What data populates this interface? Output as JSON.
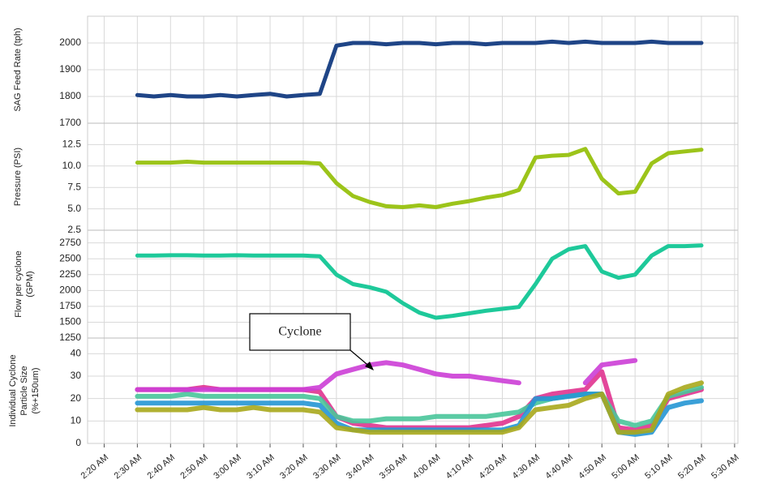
{
  "chart_data": [
    {
      "type": "line",
      "ylabel": [
        "SAG Feed Rate (tph)"
      ],
      "x": [
        "2:30 AM",
        "2:35 AM",
        "2:40 AM",
        "2:45 AM",
        "2:50 AM",
        "2:55 AM",
        "3:00 AM",
        "3:05 AM",
        "3:10 AM",
        "3:15 AM",
        "3:20 AM",
        "3:25 AM",
        "3:30 AM",
        "3:35 AM",
        "3:40 AM",
        "3:45 AM",
        "3:50 AM",
        "3:55 AM",
        "4:00 AM",
        "4:05 AM",
        "4:10 AM",
        "4:15 AM",
        "4:20 AM",
        "4:25 AM",
        "4:30 AM",
        "4:35 AM",
        "4:40 AM",
        "4:45 AM",
        "4:50 AM",
        "4:55 AM",
        "5:00 AM",
        "5:05 AM",
        "5:10 AM",
        "5:15 AM",
        "5:20 AM"
      ],
      "series": [
        {
          "color": "#1f4587",
          "values": [
            1805,
            1800,
            1805,
            1800,
            1800,
            1805,
            1800,
            1805,
            1810,
            1800,
            1805,
            1810,
            1990,
            2000,
            2000,
            1995,
            2000,
            2000,
            1995,
            2000,
            2000,
            1995,
            2000,
            2000,
            2000,
            2005,
            2000,
            2005,
            2000,
            2000,
            2000,
            2005,
            2000,
            2000,
            2000
          ]
        }
      ],
      "xlim": [
        "2:15 AM",
        "5:31 AM"
      ],
      "ylim": [
        1700,
        2100
      ],
      "yticks": [
        1700,
        1800,
        1900,
        2000
      ],
      "grid": true
    },
    {
      "type": "line",
      "ylabel": [
        "Pressure (PSI)"
      ],
      "x": [
        "2:30 AM",
        "2:35 AM",
        "2:40 AM",
        "2:45 AM",
        "2:50 AM",
        "2:55 AM",
        "3:00 AM",
        "3:05 AM",
        "3:10 AM",
        "3:15 AM",
        "3:20 AM",
        "3:25 AM",
        "3:30 AM",
        "3:35 AM",
        "3:40 AM",
        "3:45 AM",
        "3:50 AM",
        "3:55 AM",
        "4:00 AM",
        "4:05 AM",
        "4:10 AM",
        "4:15 AM",
        "4:20 AM",
        "4:25 AM",
        "4:30 AM",
        "4:35 AM",
        "4:40 AM",
        "4:45 AM",
        "4:50 AM",
        "4:55 AM",
        "5:00 AM",
        "5:05 AM",
        "5:10 AM",
        "5:15 AM",
        "5:20 AM"
      ],
      "series": [
        {
          "color": "#9cc41a",
          "values": [
            10.4,
            10.4,
            10.4,
            10.5,
            10.4,
            10.4,
            10.4,
            10.4,
            10.4,
            10.4,
            10.4,
            10.3,
            8.0,
            6.5,
            5.8,
            5.3,
            5.2,
            5.4,
            5.2,
            5.6,
            5.9,
            6.3,
            6.6,
            7.2,
            11.0,
            11.2,
            11.3,
            12.0,
            8.5,
            6.8,
            7.0,
            10.3,
            11.5,
            11.7,
            11.9
          ]
        }
      ],
      "xlim": [
        "2:15 AM",
        "5:31 AM"
      ],
      "ylim": [
        2.5,
        15
      ],
      "yticks": [
        2.5,
        {
          "value": 5,
          "label": "5.0"
        },
        7.5,
        {
          "value": 10,
          "label": "10.0"
        },
        12.5
      ],
      "grid": true
    },
    {
      "type": "line",
      "ylabel": [
        "Flow per cyclone",
        "(GPM)"
      ],
      "x": [
        "2:30 AM",
        "2:35 AM",
        "2:40 AM",
        "2:45 AM",
        "2:50 AM",
        "2:55 AM",
        "3:00 AM",
        "3:05 AM",
        "3:10 AM",
        "3:15 AM",
        "3:20 AM",
        "3:25 AM",
        "3:30 AM",
        "3:35 AM",
        "3:40 AM",
        "3:45 AM",
        "3:50 AM",
        "3:55 AM",
        "4:00 AM",
        "4:05 AM",
        "4:10 AM",
        "4:15 AM",
        "4:20 AM",
        "4:25 AM",
        "4:30 AM",
        "4:35 AM",
        "4:40 AM",
        "4:45 AM",
        "4:50 AM",
        "4:55 AM",
        "5:00 AM",
        "5:05 AM",
        "5:10 AM",
        "5:15 AM",
        "5:20 AM"
      ],
      "series": [
        {
          "color": "#1ec99a",
          "values": [
            2550,
            2550,
            2555,
            2555,
            2550,
            2550,
            2555,
            2550,
            2550,
            2550,
            2550,
            2540,
            2250,
            2100,
            2050,
            1980,
            1800,
            1650,
            1570,
            1600,
            1640,
            1680,
            1710,
            1740,
            2100,
            2500,
            2650,
            2700,
            2300,
            2200,
            2250,
            2550,
            2700,
            2700,
            2710
          ]
        }
      ],
      "xlim": [
        "2:15 AM",
        "5:31 AM"
      ],
      "ylim": [
        1250,
        2950
      ],
      "yticks": [
        1250,
        1500,
        1750,
        2000,
        2250,
        2500,
        2750
      ],
      "grid": true
    },
    {
      "type": "line",
      "ylabel": [
        "Individual Cyclone",
        "Particle Size",
        "(%+150um)"
      ],
      "annotation": "Cyclone",
      "x": [
        "2:30 AM",
        "2:35 AM",
        "2:40 AM",
        "2:45 AM",
        "2:50 AM",
        "2:55 AM",
        "3:00 AM",
        "3:05 AM",
        "3:10 AM",
        "3:15 AM",
        "3:20 AM",
        "3:25 AM",
        "3:30 AM",
        "3:35 AM",
        "3:40 AM",
        "3:45 AM",
        "3:50 AM",
        "3:55 AM",
        "4:00 AM",
        "4:05 AM",
        "4:10 AM",
        "4:15 AM",
        "4:20 AM",
        "4:25 AM",
        "4:30 AM",
        "4:35 AM",
        "4:40 AM",
        "4:45 AM",
        "4:50 AM",
        "4:55 AM",
        "5:00 AM",
        "5:05 AM",
        "5:10 AM",
        "5:15 AM",
        "5:20 AM"
      ],
      "series": [
        {
          "color": "#e0338f",
          "values": [
            24,
            24,
            24,
            24,
            25,
            24,
            24,
            24,
            24,
            24,
            24,
            23,
            12,
            9,
            8,
            7,
            7,
            7,
            7,
            7,
            7,
            8,
            9,
            12,
            20,
            22,
            23,
            24,
            32,
            7,
            6,
            8,
            20,
            22,
            24
          ]
        },
        {
          "color": "#49c59a",
          "values": [
            21,
            21,
            21,
            22,
            21,
            21,
            21,
            21,
            21,
            21,
            21,
            20,
            12,
            10,
            10,
            11,
            11,
            11,
            12,
            12,
            12,
            12,
            13,
            14,
            18,
            20,
            21,
            22,
            22,
            10,
            8,
            10,
            21,
            23,
            25
          ]
        },
        {
          "color": "#2596d4",
          "values": [
            18,
            18,
            18,
            18,
            18,
            18,
            18,
            18,
            18,
            18,
            18,
            17,
            9,
            6,
            6,
            6,
            6,
            6,
            6,
            6,
            6,
            6,
            6,
            8,
            20,
            20,
            21,
            22,
            22,
            5,
            4,
            5,
            16,
            18,
            19
          ]
        },
        {
          "color": "#a8a81c",
          "values": [
            15,
            15,
            15,
            15,
            16,
            15,
            15,
            16,
            15,
            15,
            15,
            14,
            7,
            6,
            5,
            5,
            5,
            5,
            5,
            5,
            5,
            5,
            5,
            7,
            15,
            16,
            17,
            20,
            22,
            5,
            5,
            6,
            22,
            25,
            27
          ]
        },
        {
          "color": "#cc3ed6",
          "values": [
            24,
            24,
            24,
            24,
            24,
            24,
            24,
            24,
            24,
            24,
            24,
            25,
            31,
            33,
            35,
            36,
            35,
            33,
            31,
            30,
            30,
            29,
            28,
            27,
            null,
            null,
            null,
            27,
            35,
            36,
            37,
            null,
            null,
            null,
            null
          ]
        }
      ],
      "xlim": [
        "2:15 AM",
        "5:31 AM"
      ],
      "ylim": [
        0,
        47
      ],
      "yticks": [
        0,
        10,
        20,
        30,
        40
      ],
      "grid": true,
      "xticks": [
        "2:20 AM",
        "2:30 AM",
        "2:40 AM",
        "2:50 AM",
        "3:00 AM",
        "3:10 AM",
        "3:20 AM",
        "3:30 AM",
        "3:40 AM",
        "3:50 AM",
        "4:00 AM",
        "4:10 AM",
        "4:20 AM",
        "4:30 AM",
        "4:40 AM",
        "4:50 AM",
        "5:00 AM",
        "5:10 AM",
        "5:20 AM",
        "5:30 AM"
      ]
    }
  ]
}
